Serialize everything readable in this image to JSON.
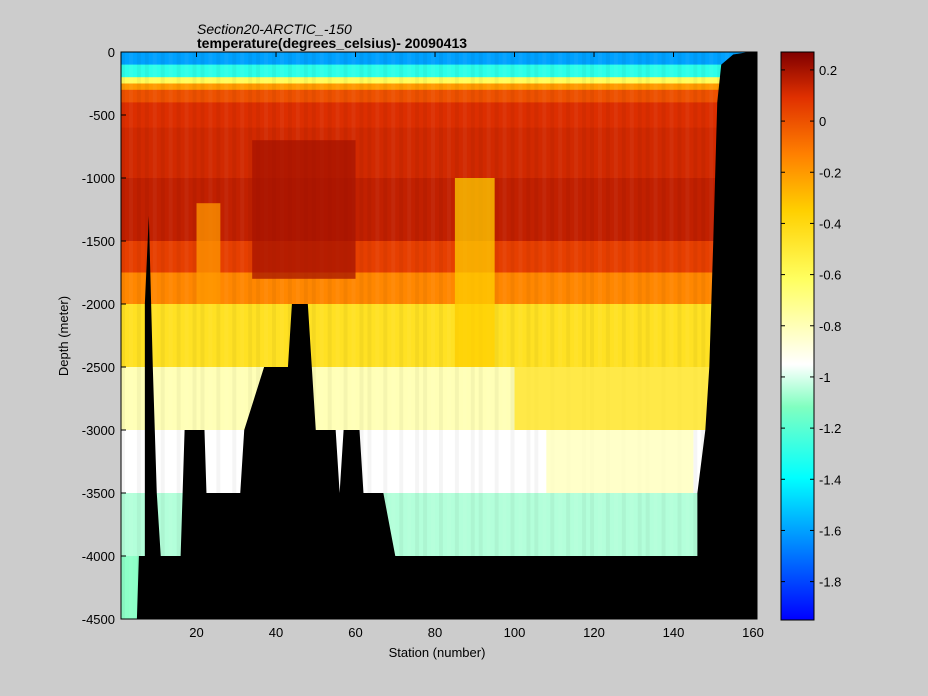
{
  "chart_data": {
    "type": "heatmap",
    "title": "Section20-ARCTIC_-150",
    "subtitle": "temperature(degrees_celsius)- 20090413",
    "xlabel": "Station (number)",
    "ylabel": "Depth (meter)",
    "xlim": [
      1,
      161
    ],
    "ylim": [
      -4500,
      0
    ],
    "xticks": [
      20,
      40,
      60,
      80,
      100,
      120,
      140,
      160
    ],
    "yticks": [
      0,
      -500,
      -1000,
      -1500,
      -2000,
      -2500,
      -3000,
      -3500,
      -4000,
      -4500
    ],
    "colorbar": {
      "clim": [
        -1.95,
        0.27
      ],
      "ticks": [
        0.2,
        0,
        -0.2,
        -0.4,
        -0.6,
        -0.8,
        -1,
        -1.2,
        -1.4,
        -1.6,
        -1.8
      ],
      "tick_labels": [
        "0.2",
        "0",
        "-0.2",
        "-0.4",
        "-0.6",
        "-0.8",
        "-1",
        "-1.2",
        "-1.4",
        "-1.6",
        "-1.8"
      ],
      "colormap": "jet"
    },
    "mask_color": "#000000",
    "layers": [
      {
        "depth_top": 0,
        "depth_bottom": -100,
        "temperature": -1.6
      },
      {
        "depth_top": -100,
        "depth_bottom": -200,
        "temperature": -1.3
      },
      {
        "depth_top": -200,
        "depth_bottom": -250,
        "temperature": -0.6
      },
      {
        "depth_top": -250,
        "depth_bottom": -300,
        "temperature": -0.2
      },
      {
        "depth_top": -300,
        "depth_bottom": -400,
        "temperature": 0.0
      },
      {
        "depth_top": -400,
        "depth_bottom": -600,
        "temperature": 0.1
      },
      {
        "depth_top": -600,
        "depth_bottom": -1000,
        "temperature": 0.12
      },
      {
        "depth_top": -1000,
        "depth_bottom": -1500,
        "temperature": 0.15
      },
      {
        "depth_top": -1500,
        "depth_bottom": -1750,
        "temperature": 0.05
      },
      {
        "depth_top": -1750,
        "depth_bottom": -2000,
        "temperature": -0.15
      },
      {
        "depth_top": -2000,
        "depth_bottom": -2500,
        "temperature": -0.45
      },
      {
        "depth_top": -2500,
        "depth_bottom": -3000,
        "temperature": -0.8
      },
      {
        "depth_top": -3000,
        "depth_bottom": -3500,
        "temperature": -0.95
      },
      {
        "depth_top": -3500,
        "depth_bottom": -4000,
        "temperature": -1.05
      },
      {
        "depth_top": -4000,
        "depth_bottom": -4500,
        "temperature": -1.1
      }
    ],
    "bathymetry": [
      {
        "station": 1,
        "depth": -4500
      },
      {
        "station": 5,
        "depth": -4500
      },
      {
        "station": 5.5,
        "depth": -4000
      },
      {
        "station": 7,
        "depth": -4000
      },
      {
        "station": 7,
        "depth": -2000
      },
      {
        "station": 8,
        "depth": -1300
      },
      {
        "station": 9,
        "depth": -2500
      },
      {
        "station": 10,
        "depth": -3500
      },
      {
        "station": 11,
        "depth": -4000
      },
      {
        "station": 16,
        "depth": -4000
      },
      {
        "station": 17,
        "depth": -3000
      },
      {
        "station": 22,
        "depth": -3000
      },
      {
        "station": 22.5,
        "depth": -3500
      },
      {
        "station": 31,
        "depth": -3500
      },
      {
        "station": 32,
        "depth": -3000
      },
      {
        "station": 37,
        "depth": -2500
      },
      {
        "station": 43,
        "depth": -2500
      },
      {
        "station": 44,
        "depth": -2000
      },
      {
        "station": 48,
        "depth": -2000
      },
      {
        "station": 49,
        "depth": -2500
      },
      {
        "station": 50,
        "depth": -3000
      },
      {
        "station": 55,
        "depth": -3000
      },
      {
        "station": 56,
        "depth": -3500
      },
      {
        "station": 57,
        "depth": -3000
      },
      {
        "station": 61,
        "depth": -3000
      },
      {
        "station": 62,
        "depth": -3500
      },
      {
        "station": 67,
        "depth": -3500
      },
      {
        "station": 70,
        "depth": -4000
      },
      {
        "station": 146,
        "depth": -4000
      },
      {
        "station": 146,
        "depth": -3500
      },
      {
        "station": 148,
        "depth": -3000
      },
      {
        "station": 149,
        "depth": -2500
      },
      {
        "station": 150,
        "depth": -1500
      },
      {
        "station": 151,
        "depth": -400
      },
      {
        "station": 152,
        "depth": -100
      },
      {
        "station": 155,
        "depth": -20
      },
      {
        "station": 159,
        "depth": 0
      },
      {
        "station": 161,
        "depth": 0
      }
    ],
    "features": [
      {
        "station_start": 34,
        "station_end": 60,
        "depth_top": -700,
        "depth_bottom": -1800,
        "temperature": 0.2
      },
      {
        "station_start": 85,
        "station_end": 95,
        "depth_top": -1000,
        "depth_bottom": -2500,
        "temperature": -0.35
      },
      {
        "station_start": 20,
        "station_end": 26,
        "depth_top": -1200,
        "depth_bottom": -2000,
        "temperature": -0.2
      },
      {
        "station_start": 100,
        "station_end": 150,
        "depth_top": -2500,
        "depth_bottom": -3000,
        "temperature": -0.45
      },
      {
        "station_start": 108,
        "station_end": 145,
        "depth_top": -3000,
        "depth_bottom": -3500,
        "temperature": -0.8
      }
    ]
  }
}
